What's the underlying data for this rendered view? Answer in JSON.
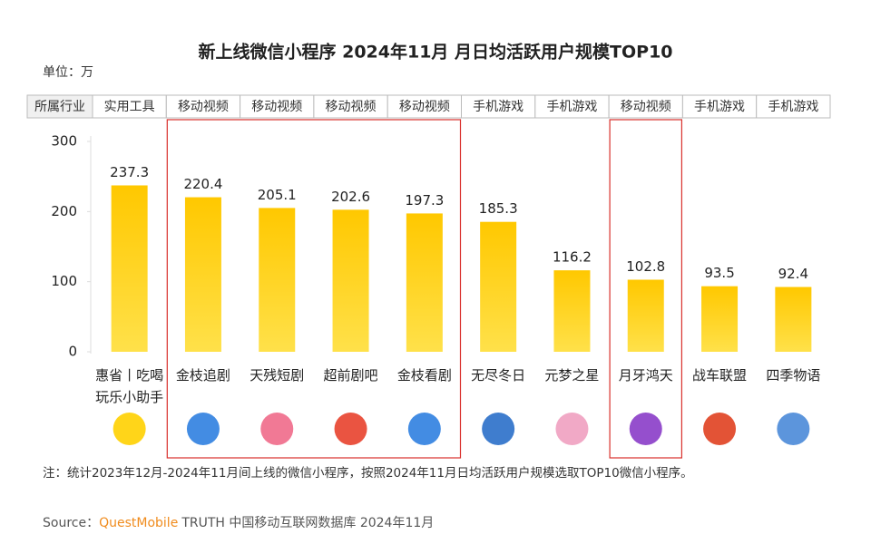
{
  "chart_data": {
    "type": "bar",
    "title": "新上线微信小程序 2024年11月 月日均活跃用户规模TOP10",
    "unit": "单位：万",
    "industry_header": "所属行业",
    "industries": [
      "实用工具",
      "移动视频",
      "移动视频",
      "移动视频",
      "移动视频",
      "手机游戏",
      "手机游戏",
      "移动视频",
      "手机游戏",
      "手机游戏"
    ],
    "categories": [
      "惠省丨吃喝玩乐小助手",
      "金枝追剧",
      "天残短剧",
      "超前剧吧",
      "金枝看剧",
      "无尽冬日",
      "元梦之星",
      "月牙鸿天",
      "战车联盟",
      "四季物语"
    ],
    "values": [
      237.3,
      220.4,
      205.1,
      202.6,
      197.3,
      185.3,
      116.2,
      102.8,
      93.5,
      92.4
    ],
    "color": "#ffc000",
    "ylim": [
      0,
      300
    ],
    "yticks": [
      0,
      100,
      200,
      300
    ],
    "note": "注：统计2023年12月-2024年11月间上线的微信小程序，按照2024年11月日均活跃用户规模选取TOP10微信小程序。",
    "source": {
      "label": "Source：",
      "brand": "QuestMobile",
      "text": "TRUTH 中国移动互联网数据库 2024年11月"
    }
  }
}
